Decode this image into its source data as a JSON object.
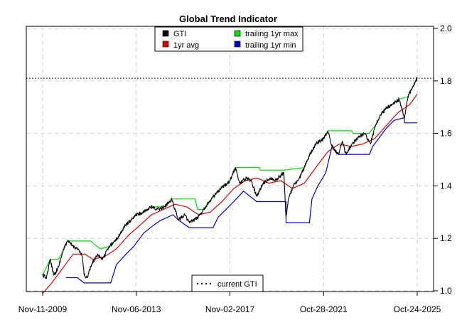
{
  "chart_data": {
    "type": "line",
    "title": "Global Trend Indicator",
    "xlabel": "",
    "ylabel": "",
    "x_range": [
      "2009-11-11",
      "2025-10-24"
    ],
    "x_ticks": [
      "Nov-11-2009",
      "Nov-06-2013",
      "Nov-02-2017",
      "Oct-28-2021",
      "Oct-24-2025"
    ],
    "x_tick_dates": [
      "2009-11-11",
      "2013-11-06",
      "2017-11-02",
      "2021-10-28",
      "2025-10-24"
    ],
    "ylim": [
      1.0,
      2.0
    ],
    "y_ticks": [
      "1.0",
      "1.2",
      "1.4",
      "1.6",
      "1.8",
      "2.0"
    ],
    "y_axis_side": "right",
    "grid": true,
    "legend_placement": "top-center",
    "legend": [
      {
        "label": "GTI",
        "color": "#000000"
      },
      {
        "label": "trailing 1yr max",
        "color": "#00dd00"
      },
      {
        "label": "1yr avg",
        "color": "#dd0000"
      },
      {
        "label": "trailing 1yr min",
        "color": "#0000cc"
      }
    ],
    "reference_line": {
      "label": "current GTI",
      "value": 1.81,
      "style": "dotted",
      "color": "#000000"
    },
    "reference_legend_placement": "bottom-center",
    "series": [
      {
        "name": "GTI",
        "color": "#000000",
        "points": [
          [
            "2009-11-11",
            1.06
          ],
          [
            "2010-01-10",
            1.05
          ],
          [
            "2010-03-08",
            1.12
          ],
          [
            "2010-05-05",
            1.06
          ],
          [
            "2010-07-14",
            1.09
          ],
          [
            "2010-09-20",
            1.15
          ],
          [
            "2010-11-30",
            1.19
          ],
          [
            "2011-03-01",
            1.17
          ],
          [
            "2011-05-15",
            1.16
          ],
          [
            "2011-07-20",
            1.13
          ],
          [
            "2011-08-20",
            1.06
          ],
          [
            "2011-10-04",
            1.05
          ],
          [
            "2011-12-12",
            1.1
          ],
          [
            "2012-03-15",
            1.14
          ],
          [
            "2012-06-01",
            1.12
          ],
          [
            "2012-09-15",
            1.17
          ],
          [
            "2013-01-15",
            1.2
          ],
          [
            "2013-05-20",
            1.25
          ],
          [
            "2013-08-20",
            1.27
          ],
          [
            "2013-11-06",
            1.29
          ],
          [
            "2014-03-10",
            1.3
          ],
          [
            "2014-06-20",
            1.32
          ],
          [
            "2014-09-15",
            1.31
          ],
          [
            "2015-01-20",
            1.32
          ],
          [
            "2015-05-10",
            1.35
          ],
          [
            "2015-08-24",
            1.27
          ],
          [
            "2015-12-01",
            1.29
          ],
          [
            "2016-02-11",
            1.26
          ],
          [
            "2016-06-27",
            1.28
          ],
          [
            "2016-09-15",
            1.31
          ],
          [
            "2016-12-15",
            1.34
          ],
          [
            "2017-04-01",
            1.37
          ],
          [
            "2017-08-01",
            1.4
          ],
          [
            "2017-11-02",
            1.42
          ],
          [
            "2018-01-26",
            1.47
          ],
          [
            "2018-04-01",
            1.41
          ],
          [
            "2018-07-15",
            1.43
          ],
          [
            "2018-10-01",
            1.42
          ],
          [
            "2018-12-24",
            1.36
          ],
          [
            "2019-04-01",
            1.41
          ],
          [
            "2019-07-15",
            1.43
          ],
          [
            "2019-10-01",
            1.42
          ],
          [
            "2020-02-19",
            1.45
          ],
          [
            "2020-03-23",
            1.28
          ],
          [
            "2020-05-01",
            1.35
          ],
          [
            "2020-07-15",
            1.4
          ],
          [
            "2020-10-01",
            1.42
          ],
          [
            "2020-12-31",
            1.47
          ],
          [
            "2021-04-01",
            1.52
          ],
          [
            "2021-07-01",
            1.56
          ],
          [
            "2021-10-28",
            1.58
          ],
          [
            "2022-01-04",
            1.61
          ],
          [
            "2022-03-08",
            1.55
          ],
          [
            "2022-06-16",
            1.52
          ],
          [
            "2022-08-16",
            1.57
          ],
          [
            "2022-10-12",
            1.52
          ],
          [
            "2023-01-15",
            1.56
          ],
          [
            "2023-04-01",
            1.58
          ],
          [
            "2023-07-31",
            1.6
          ],
          [
            "2023-10-27",
            1.56
          ],
          [
            "2024-01-15",
            1.63
          ],
          [
            "2024-04-01",
            1.67
          ],
          [
            "2024-07-15",
            1.7
          ],
          [
            "2024-10-01",
            1.71
          ],
          [
            "2025-01-15",
            1.73
          ],
          [
            "2025-04-08",
            1.66
          ],
          [
            "2025-06-01",
            1.74
          ],
          [
            "2025-08-01",
            1.77
          ],
          [
            "2025-10-24",
            1.81
          ]
        ]
      },
      {
        "name": "1yr avg",
        "color": "#dd0000",
        "points": [
          [
            "2009-11-11",
            0.99
          ],
          [
            "2010-04-01",
            1.03
          ],
          [
            "2010-10-01",
            1.09
          ],
          [
            "2011-03-01",
            1.14
          ],
          [
            "2011-09-01",
            1.14
          ],
          [
            "2012-01-01",
            1.12
          ],
          [
            "2012-07-01",
            1.13
          ],
          [
            "2013-01-01",
            1.16
          ],
          [
            "2013-07-01",
            1.21
          ],
          [
            "2014-01-01",
            1.25
          ],
          [
            "2014-07-01",
            1.29
          ],
          [
            "2015-01-01",
            1.31
          ],
          [
            "2015-07-01",
            1.33
          ],
          [
            "2016-01-01",
            1.32
          ],
          [
            "2016-07-01",
            1.29
          ],
          [
            "2017-01-01",
            1.3
          ],
          [
            "2017-07-01",
            1.34
          ],
          [
            "2018-01-01",
            1.39
          ],
          [
            "2018-07-01",
            1.42
          ],
          [
            "2019-01-01",
            1.43
          ],
          [
            "2019-07-01",
            1.41
          ],
          [
            "2020-01-01",
            1.42
          ],
          [
            "2020-07-01",
            1.39
          ],
          [
            "2021-01-01",
            1.41
          ],
          [
            "2021-07-01",
            1.47
          ],
          [
            "2022-01-01",
            1.53
          ],
          [
            "2022-07-01",
            1.56
          ],
          [
            "2023-01-01",
            1.55
          ],
          [
            "2023-07-01",
            1.56
          ],
          [
            "2024-01-01",
            1.58
          ],
          [
            "2024-07-01",
            1.63
          ],
          [
            "2025-01-01",
            1.68
          ],
          [
            "2025-07-01",
            1.71
          ],
          [
            "2025-10-24",
            1.75
          ]
        ]
      },
      {
        "name": "trailing 1yr max",
        "color": "#00dd00",
        "points": [
          [
            "2009-11-11",
            1.06
          ],
          [
            "2010-03-08",
            1.12
          ],
          [
            "2010-07-14",
            1.12
          ],
          [
            "2010-09-20",
            1.15
          ],
          [
            "2010-11-30",
            1.19
          ],
          [
            "2011-11-30",
            1.19
          ],
          [
            "2012-03-01",
            1.17
          ],
          [
            "2012-05-01",
            1.16
          ],
          [
            "2012-09-15",
            1.17
          ],
          [
            "2013-01-15",
            1.2
          ],
          [
            "2013-05-20",
            1.25
          ],
          [
            "2013-08-20",
            1.27
          ],
          [
            "2013-11-06",
            1.29
          ],
          [
            "2014-03-10",
            1.3
          ],
          [
            "2014-06-20",
            1.32
          ],
          [
            "2015-01-20",
            1.32
          ],
          [
            "2015-05-10",
            1.35
          ],
          [
            "2016-05-10",
            1.35
          ],
          [
            "2016-06-15",
            1.31
          ],
          [
            "2016-09-15",
            1.31
          ],
          [
            "2016-12-15",
            1.34
          ],
          [
            "2017-04-01",
            1.37
          ],
          [
            "2017-08-01",
            1.4
          ],
          [
            "2017-11-02",
            1.42
          ],
          [
            "2018-01-26",
            1.47
          ],
          [
            "2019-01-26",
            1.47
          ],
          [
            "2019-02-20",
            1.46
          ],
          [
            "2020-02-19",
            1.46
          ],
          [
            "2020-12-31",
            1.47
          ],
          [
            "2021-04-01",
            1.52
          ],
          [
            "2021-07-01",
            1.56
          ],
          [
            "2021-10-28",
            1.58
          ],
          [
            "2022-01-04",
            1.61
          ],
          [
            "2023-01-04",
            1.61
          ],
          [
            "2023-02-01",
            1.6
          ],
          [
            "2023-10-01",
            1.6
          ],
          [
            "2024-01-15",
            1.63
          ],
          [
            "2024-04-01",
            1.67
          ],
          [
            "2024-07-15",
            1.7
          ],
          [
            "2024-10-01",
            1.71
          ],
          [
            "2025-01-15",
            1.73
          ],
          [
            "2025-06-01",
            1.74
          ],
          [
            "2025-08-01",
            1.77
          ],
          [
            "2025-10-24",
            1.81
          ]
        ]
      },
      {
        "name": "trailing 1yr min",
        "color": "#0000cc",
        "points": [
          [
            "2010-11-11",
            1.05
          ],
          [
            "2011-05-05",
            1.05
          ],
          [
            "2011-08-20",
            1.03
          ],
          [
            "2012-10-04",
            1.03
          ],
          [
            "2013-01-01",
            1.1
          ],
          [
            "2013-06-01",
            1.14
          ],
          [
            "2013-10-01",
            1.17
          ],
          [
            "2014-03-01",
            1.22
          ],
          [
            "2014-08-01",
            1.25
          ],
          [
            "2014-12-01",
            1.27
          ],
          [
            "2015-06-01",
            1.29
          ],
          [
            "2015-08-24",
            1.27
          ],
          [
            "2016-02-11",
            1.24
          ],
          [
            "2017-02-11",
            1.24
          ],
          [
            "2017-05-01",
            1.28
          ],
          [
            "2017-09-01",
            1.31
          ],
          [
            "2018-01-01",
            1.34
          ],
          [
            "2018-06-01",
            1.38
          ],
          [
            "2018-12-24",
            1.34
          ],
          [
            "2020-03-23",
            1.34
          ],
          [
            "2020-03-23",
            1.26
          ],
          [
            "2021-03-23",
            1.26
          ],
          [
            "2021-05-01",
            1.35
          ],
          [
            "2021-08-01",
            1.4
          ],
          [
            "2021-12-01",
            1.45
          ],
          [
            "2022-03-08",
            1.55
          ],
          [
            "2022-06-16",
            1.52
          ],
          [
            "2023-10-12",
            1.52
          ],
          [
            "2023-12-01",
            1.55
          ],
          [
            "2024-03-01",
            1.58
          ],
          [
            "2024-07-01",
            1.62
          ],
          [
            "2024-11-01",
            1.65
          ],
          [
            "2025-04-08",
            1.66
          ],
          [
            "2025-04-08",
            1.64
          ],
          [
            "2025-10-24",
            1.64
          ]
        ]
      }
    ]
  }
}
